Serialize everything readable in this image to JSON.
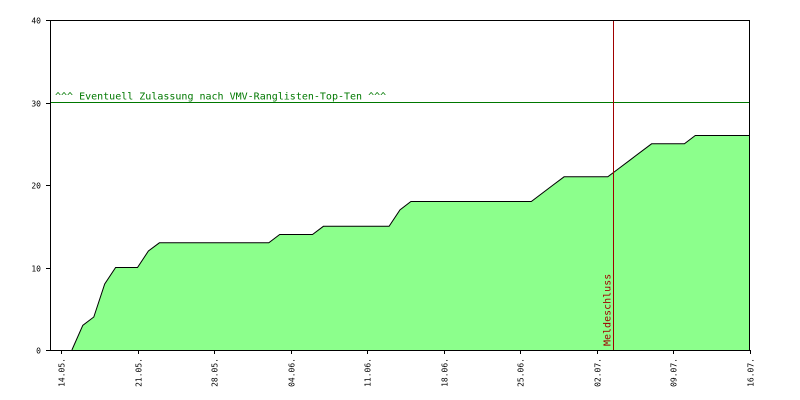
{
  "chart_data": {
    "type": "area",
    "title": "",
    "xlabel": "",
    "ylabel": "",
    "ylim": [
      0,
      40
    ],
    "y_ticks": [
      0,
      10,
      20,
      30,
      40
    ],
    "x_range": [
      "2009-05-13",
      "2009-07-16"
    ],
    "x_ticks": [
      {
        "date": "2009-05-14",
        "label": "14.05."
      },
      {
        "date": "2009-05-21",
        "label": "21.05."
      },
      {
        "date": "2009-05-28",
        "label": "28.05."
      },
      {
        "date": "2009-06-04",
        "label": "04.06."
      },
      {
        "date": "2009-06-11",
        "label": "11.06."
      },
      {
        "date": "2009-06-18",
        "label": "18.06."
      },
      {
        "date": "2009-06-25",
        "label": "25.06."
      },
      {
        "date": "2009-07-02",
        "label": "02.07."
      },
      {
        "date": "2009-07-09",
        "label": "09.07."
      },
      {
        "date": "2009-07-16",
        "label": "16.07."
      }
    ],
    "grid": false,
    "series": [
      {
        "points": [
          [
            "2009-05-15",
            0
          ],
          [
            "2009-05-16",
            3
          ],
          [
            "2009-05-17",
            4
          ],
          [
            "2009-05-18",
            8
          ],
          [
            "2009-05-19",
            10
          ],
          [
            "2009-05-21",
            10
          ],
          [
            "2009-05-22",
            12
          ],
          [
            "2009-05-23",
            13
          ],
          [
            "2009-06-02",
            13
          ],
          [
            "2009-06-03",
            14
          ],
          [
            "2009-06-06",
            14
          ],
          [
            "2009-06-07",
            15
          ],
          [
            "2009-06-13",
            15
          ],
          [
            "2009-06-14",
            17
          ],
          [
            "2009-06-15",
            18
          ],
          [
            "2009-06-26",
            18
          ],
          [
            "2009-06-28",
            20
          ],
          [
            "2009-06-29",
            21
          ],
          [
            "2009-07-03",
            21
          ],
          [
            "2009-07-04",
            22
          ],
          [
            "2009-07-05",
            23
          ],
          [
            "2009-07-07",
            25
          ],
          [
            "2009-07-10",
            25
          ],
          [
            "2009-07-11",
            26
          ],
          [
            "2009-07-16",
            26
          ]
        ]
      }
    ],
    "reference_lines": [
      {
        "orientation": "horizontal",
        "y": 30,
        "label": "^^^ Eventuell Zulassung nach VMV-Ranglisten-Top-Ten ^^^"
      },
      {
        "orientation": "vertical",
        "x": "2009-07-03.5",
        "label": "Meldeschluss"
      }
    ],
    "colors": {
      "fill": "#8cff8c",
      "outline": "#000000",
      "threshold_line": "#007800",
      "deadline_line": "#a00000",
      "axis": "#000000"
    }
  }
}
